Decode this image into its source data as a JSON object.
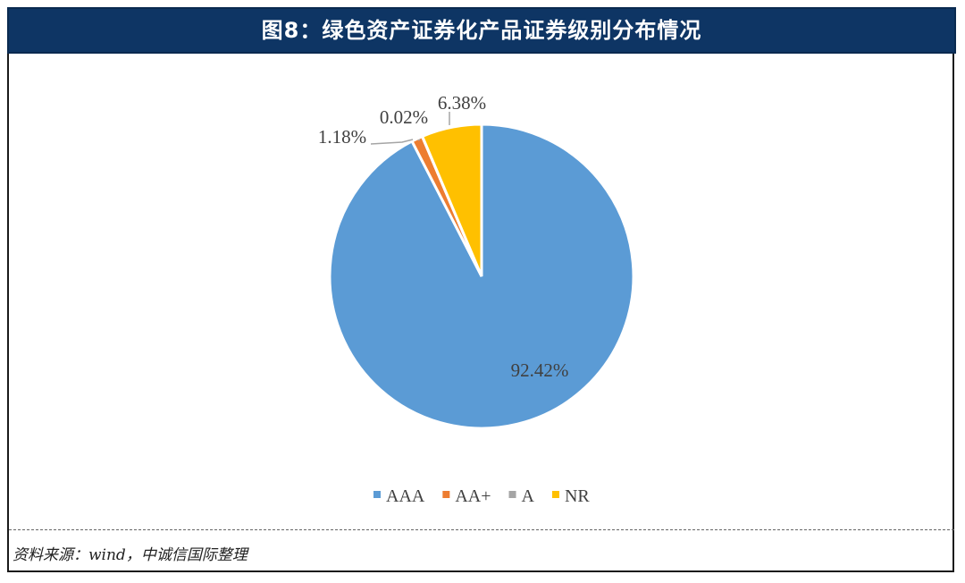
{
  "header": {
    "title": "图8：绿色资产证券化产品证券级别分布情况"
  },
  "chart_data": {
    "type": "pie",
    "title": "图8：绿色资产证券化产品证券级别分布情况",
    "categories": [
      "AAA",
      "AA+",
      "A",
      "NR"
    ],
    "values": [
      92.42,
      1.18,
      0.02,
      6.38
    ],
    "labels": [
      "92.42%",
      "1.18%",
      "0.02%",
      "6.38%"
    ],
    "colors": [
      "#5b9bd5",
      "#ed7d31",
      "#a5a5a5",
      "#ffc000"
    ],
    "legend_position": "bottom"
  },
  "footer": {
    "source": "资料来源：wind，中诚信国际整理"
  }
}
